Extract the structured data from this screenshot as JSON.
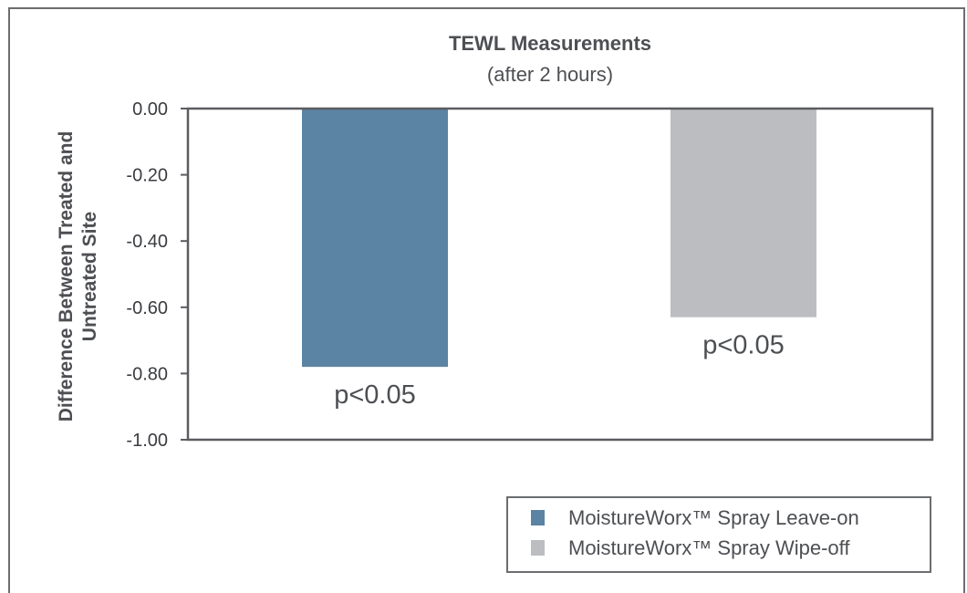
{
  "chart_data": {
    "type": "bar",
    "title": "TEWL Measurements",
    "subtitle": "(after 2 hours)",
    "ylabel": [
      "Difference Between Treated and",
      "Untreated Site"
    ],
    "ylim": [
      -1.0,
      0.0
    ],
    "yticks": [
      "0.00",
      "-0.20",
      "-0.40",
      "-0.60",
      "-0.80",
      "-1.00"
    ],
    "ytick_values": [
      0.0,
      -0.2,
      -0.4,
      -0.6,
      -0.8,
      -1.0
    ],
    "grid": false,
    "legend_position": "bottom-right",
    "series": [
      {
        "name": "MoistureWorx™ Spray Leave-on",
        "value": -0.78,
        "annotation": "p<0.05",
        "color": "#5b83a3"
      },
      {
        "name": "MoistureWorx™ Spray Wipe-off",
        "value": -0.63,
        "annotation": "p<0.05",
        "color": "#bcbdc0"
      }
    ]
  }
}
